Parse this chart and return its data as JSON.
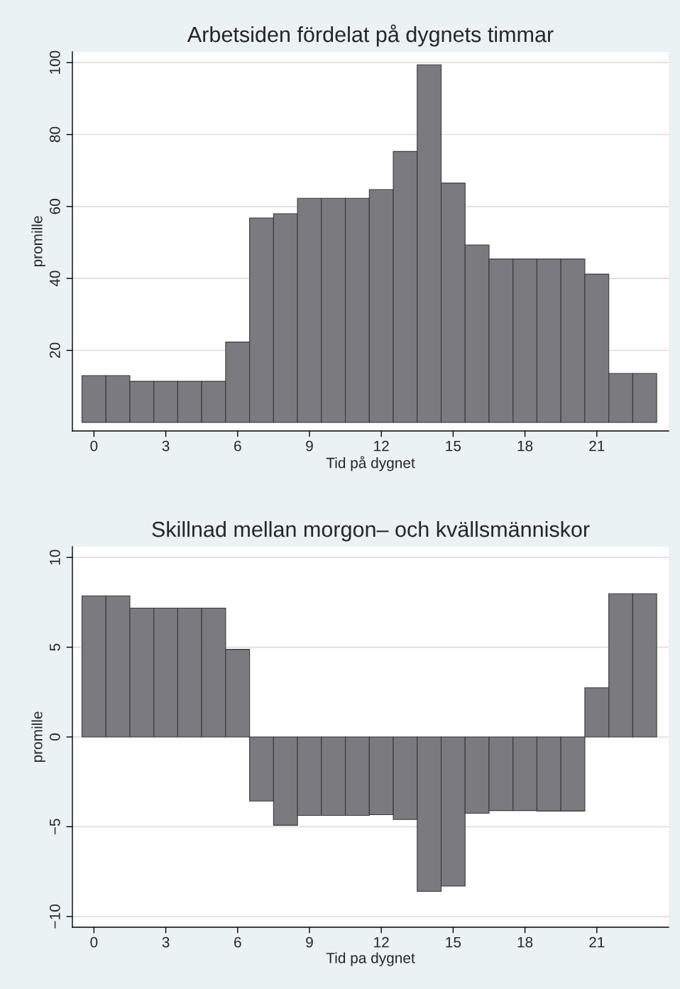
{
  "chart_data": [
    {
      "type": "bar",
      "title": "Arbetsiden fördelat på dygnets timmar",
      "xlabel": "Tid på dygnet",
      "ylabel": "promille",
      "x": [
        0,
        1,
        2,
        3,
        4,
        5,
        6,
        7,
        8,
        9,
        10,
        11,
        12,
        13,
        14,
        15,
        16,
        17,
        18,
        19,
        20,
        21,
        22,
        23
      ],
      "values": [
        13.0,
        13.0,
        11.4,
        11.4,
        11.4,
        11.4,
        22.3,
        56.8,
        58.0,
        62.3,
        62.3,
        62.3,
        64.7,
        75.3,
        99.4,
        66.5,
        49.3,
        45.4,
        45.4,
        45.4,
        45.4,
        41.2,
        13.6,
        13.6
      ],
      "color": "#7a7a80",
      "xlim": [
        -0.9,
        24
      ],
      "xticks": [
        0,
        3,
        6,
        9,
        12,
        15,
        18,
        21
      ],
      "ylim": [
        -2.4,
        103
      ],
      "yticks": [
        20,
        40,
        60,
        80,
        100
      ],
      "grid": "y"
    },
    {
      "type": "bar",
      "title": "Skillnad mellan morgon– och kvällsmänniskor",
      "xlabel": "Tid pa dygnet",
      "ylabel": "promille",
      "x": [
        0,
        1,
        2,
        3,
        4,
        5,
        6,
        7,
        8,
        9,
        10,
        11,
        12,
        13,
        14,
        15,
        16,
        17,
        18,
        19,
        20,
        21,
        22,
        23
      ],
      "values": [
        7.86,
        7.86,
        7.18,
        7.18,
        7.18,
        7.18,
        4.88,
        -3.57,
        -4.92,
        -4.37,
        -4.37,
        -4.37,
        -4.33,
        -4.6,
        -8.6,
        -8.3,
        -4.25,
        -4.1,
        -4.1,
        -4.13,
        -4.13,
        2.74,
        7.98,
        7.98
      ],
      "color": "#7a7a80",
      "xlim": [
        -0.9,
        24
      ],
      "xticks": [
        0,
        3,
        6,
        9,
        12,
        15,
        18,
        21
      ],
      "ylim": [
        -10.6,
        10.6
      ],
      "yticks": [
        10,
        5,
        0,
        {
          "value": -5,
          "label": "−5"
        },
        {
          "value": -10,
          "label": "−10"
        }
      ],
      "grid": "y"
    }
  ]
}
